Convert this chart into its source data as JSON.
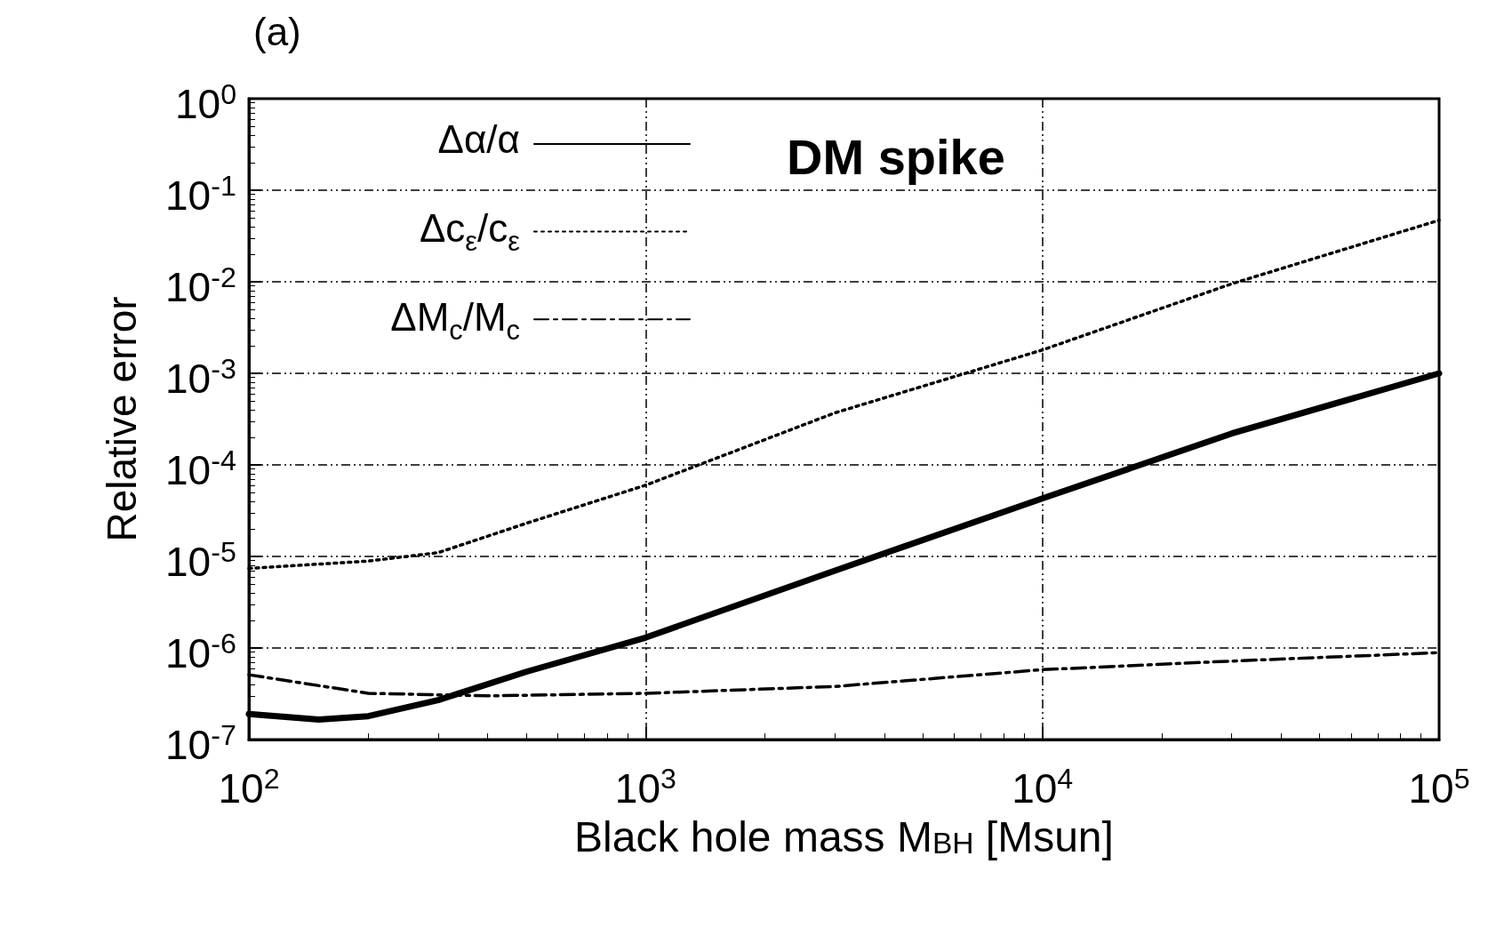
{
  "chart_data": {
    "type": "line",
    "title": "(a)",
    "xlabel": "Black hole mass M$_{BH}$ [Msun]",
    "ylabel": "Relative error",
    "annotations": [
      "DM spike"
    ],
    "log": "xy",
    "grid": true,
    "legend": "top left",
    "marker": "none",
    "xlim": [
      100,
      100000
    ],
    "ylim": [
      1e-07,
      1
    ],
    "xticks": [
      {
        "value": 100,
        "label": "10$^{2}$"
      },
      {
        "value": 1000,
        "label": "10$^{3}$"
      },
      {
        "value": 10000,
        "label": "10$^{4}$"
      },
      {
        "value": 100000,
        "label": "10$^{5}$"
      }
    ],
    "yticks": [
      {
        "value": 1e-07,
        "label": "10$^{-7}$"
      },
      {
        "value": 1e-06,
        "label": "10$^{-6}$"
      },
      {
        "value": 1e-05,
        "label": "10$^{-5}$"
      },
      {
        "value": 0.0001,
        "label": "10$^{-4}$"
      },
      {
        "value": 0.001,
        "label": "10$^{-3}$"
      },
      {
        "value": 0.01,
        "label": "10$^{-2}$"
      },
      {
        "value": 0.1,
        "label": "10$^{-1}$"
      },
      {
        "value": 1,
        "label": "10$^{0}$"
      }
    ],
    "series": [
      {
        "name": "Δα/α",
        "color": "#000000",
        "line_style": "solid",
        "x": [
          100,
          150,
          200,
          300,
          500,
          1000,
          3000,
          10000,
          30000,
          100000
        ],
        "values": [
          1.9e-07,
          1.65e-07,
          1.8e-07,
          2.7e-07,
          5.5e-07,
          1.3e-06,
          7e-06,
          4.3e-05,
          0.00022,
          0.001
        ]
      },
      {
        "name": "Δc$_{ε}$/c$_{ε}$",
        "color": "#000000",
        "line_style": "dotted",
        "x": [
          100,
          200,
          300,
          500,
          1000,
          3000,
          10000,
          30000,
          100000
        ],
        "values": [
          7.4e-06,
          8.9e-06,
          1.1e-05,
          2.3e-05,
          6e-05,
          0.00037,
          0.0018,
          0.0095,
          0.047
        ]
      },
      {
        "name": "ΔM$_{c}$/M$_{c}$",
        "color": "#000000",
        "line_style": "dashdot",
        "x": [
          100,
          200,
          400,
          1000,
          3000,
          10000,
          30000,
          100000
        ],
        "values": [
          5.1e-07,
          3.2e-07,
          3e-07,
          3.2e-07,
          3.8e-07,
          5.8e-07,
          7.2e-07,
          8.9e-07
        ]
      }
    ]
  }
}
